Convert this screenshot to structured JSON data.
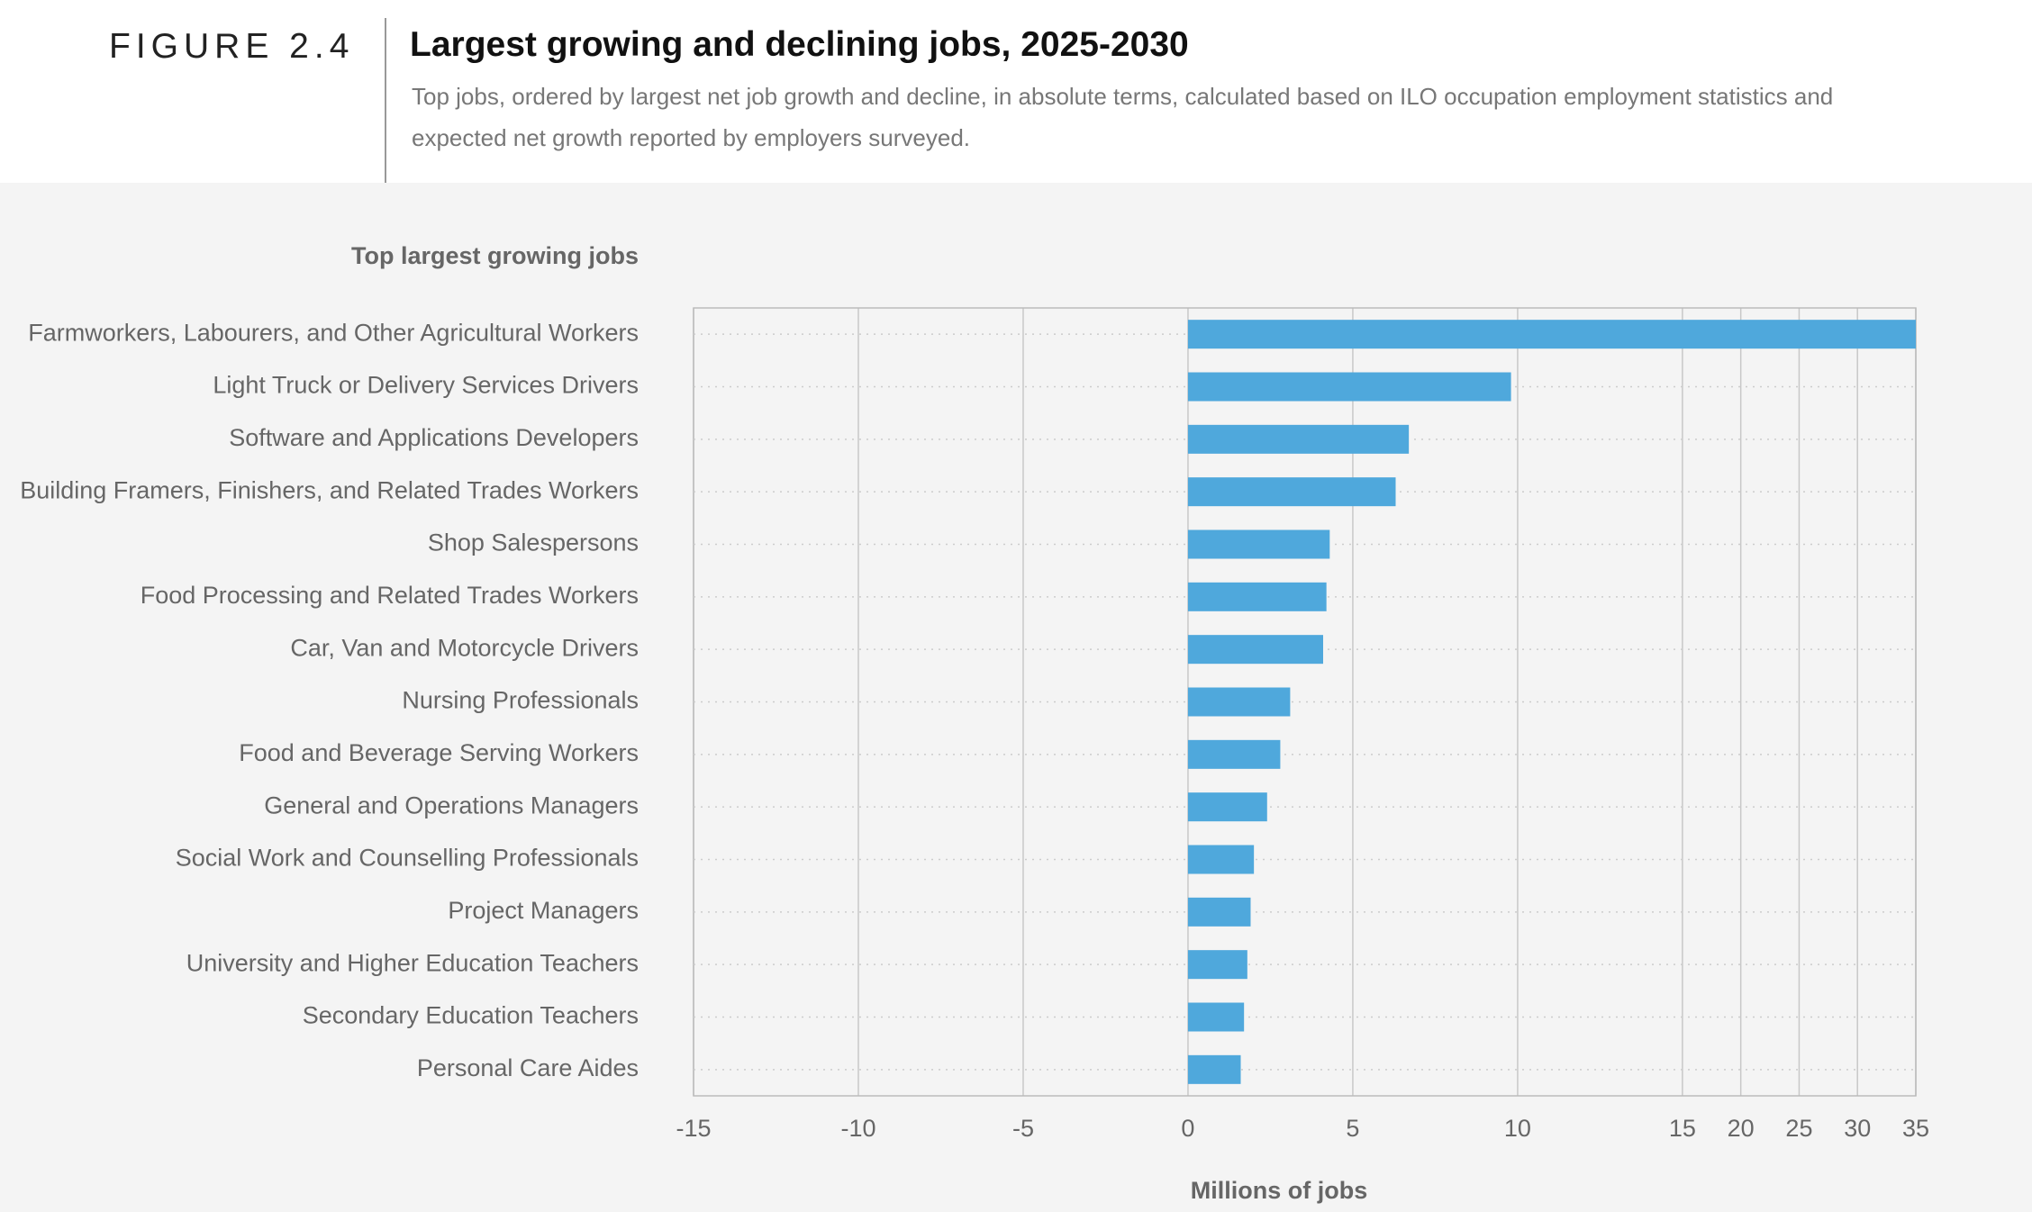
{
  "figure_label": "FIGURE 2.4",
  "chart_data": {
    "type": "bar",
    "orientation": "horizontal",
    "title": "Largest growing and declining jobs, 2025-2030",
    "subtitle": "Top jobs, ordered by largest net job growth and decline, in absolute terms, calculated based on ILO occupation employment statistics and expected net growth reported by employers surveyed.",
    "panel_title": "Top largest growing jobs",
    "xlabel": "Millions of jobs",
    "categories": [
      "Farmworkers, Labourers, and Other Agricultural Workers",
      "Light Truck or Delivery Services Drivers",
      "Software and Applications Developers",
      "Building Framers, Finishers, and Related Trades Workers",
      "Shop Salespersons",
      "Food Processing and Related Trades Workers",
      "Car, Van and Motorcycle Drivers",
      "Nursing Professionals",
      "Food and Beverage Serving Workers",
      "General and Operations Managers",
      "Social Work and Counselling Professionals",
      "Project Managers",
      "University and Higher Education Teachers",
      "Secondary Education Teachers",
      "Personal Care Aides"
    ],
    "values": [
      35,
      9.8,
      6.7,
      6.3,
      4.3,
      4.2,
      4.1,
      3.1,
      2.8,
      2.4,
      2.0,
      1.9,
      1.8,
      1.7,
      1.6
    ],
    "color": "#4fa8dc",
    "xlim": [
      -15,
      35
    ],
    "xticks": [
      -15,
      -10,
      -5,
      0,
      5,
      10,
      15,
      20,
      25,
      30,
      35
    ],
    "grid": true
  }
}
